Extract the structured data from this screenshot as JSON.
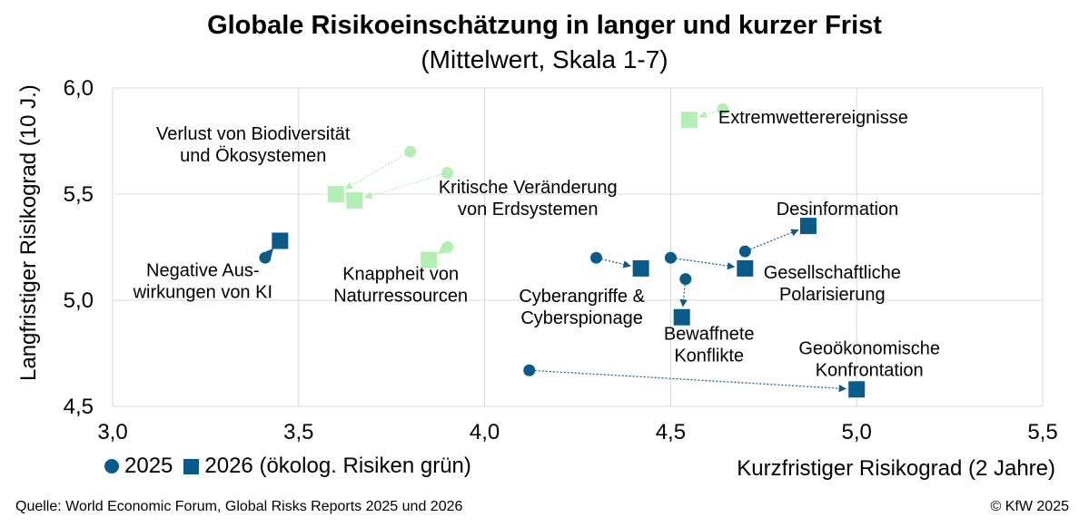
{
  "chart_data": {
    "type": "scatter",
    "title": "Globale Risikoeinschätzung in langer und kurzer Frist",
    "subtitle": "(Mittelwert, Skala 1-7)",
    "xlabel": "Kurzfristiger Risikograd (2 Jahre)",
    "ylabel": "Langfristiger Risikograd (10 J.)",
    "xlim": [
      3.0,
      5.5
    ],
    "ylim": [
      4.5,
      6.0
    ],
    "x_ticks": [
      "3,0",
      "3,5",
      "4,0",
      "4,5",
      "5,0",
      "5,5"
    ],
    "y_ticks": [
      "4,5",
      "5,0",
      "5,5",
      "6,0"
    ],
    "grid": true,
    "legend_position": "bottom-left",
    "legend": [
      {
        "label": "2025",
        "marker": "circle"
      },
      {
        "label": "2026 (ökolog. Risiken grün)",
        "marker": "square"
      }
    ],
    "colors": {
      "blue": "#0b5b8a",
      "green": "#b3eeb3"
    },
    "series": [
      {
        "label": [
          "Extremwetterereignisse"
        ],
        "group": "green",
        "x2025": 4.64,
        "y2025": 5.9,
        "x2026": 4.55,
        "y2026": 5.85
      },
      {
        "label": [
          "Verlust von Biodiversität",
          "und Ökosystemen"
        ],
        "group": "green",
        "x2025": 3.8,
        "y2025": 5.7,
        "x2026": 3.6,
        "y2026": 5.5
      },
      {
        "label": [
          "Kritische Veränderung",
          "von Erdsystemen"
        ],
        "group": "green",
        "x2025": 3.9,
        "y2025": 5.6,
        "x2026": 3.65,
        "y2026": 5.47
      },
      {
        "label": [
          "Knappheit von",
          "Naturressourcen"
        ],
        "group": "green",
        "x2025": 3.9,
        "y2025": 5.25,
        "x2026": 3.85,
        "y2026": 5.19
      },
      {
        "label": [
          "Negative Aus-",
          "wirkungen von KI"
        ],
        "group": "blue",
        "x2025": 3.41,
        "y2025": 5.2,
        "x2026": 3.45,
        "y2026": 5.28
      },
      {
        "label": [
          "Desinformation"
        ],
        "group": "blue",
        "x2025": 4.7,
        "y2025": 5.23,
        "x2026": 4.87,
        "y2026": 5.35
      },
      {
        "label": [
          "Cyberangriffe &",
          "Cyberspionage"
        ],
        "group": "blue",
        "x2025": 4.3,
        "y2025": 5.2,
        "x2026": 4.42,
        "y2026": 5.15
      },
      {
        "label": [
          "Gesellschaftliche",
          "Polarisierung"
        ],
        "group": "blue",
        "x2025": 4.5,
        "y2025": 5.2,
        "x2026": 4.7,
        "y2026": 5.15
      },
      {
        "label": [
          "Bewaffnete",
          "Konflikte"
        ],
        "group": "blue",
        "x2025": 4.54,
        "y2025": 5.1,
        "x2026": 4.53,
        "y2026": 4.92
      },
      {
        "label": [
          "Geoökonomische",
          "Konfrontation"
        ],
        "group": "blue",
        "x2025": 4.12,
        "y2025": 4.67,
        "x2026": 5.0,
        "y2026": 4.58
      }
    ]
  },
  "footer": {
    "source": "Quelle: World Economic Forum, Global Risks Reports 2025 und 2026",
    "copyright": "© KfW 2025"
  }
}
